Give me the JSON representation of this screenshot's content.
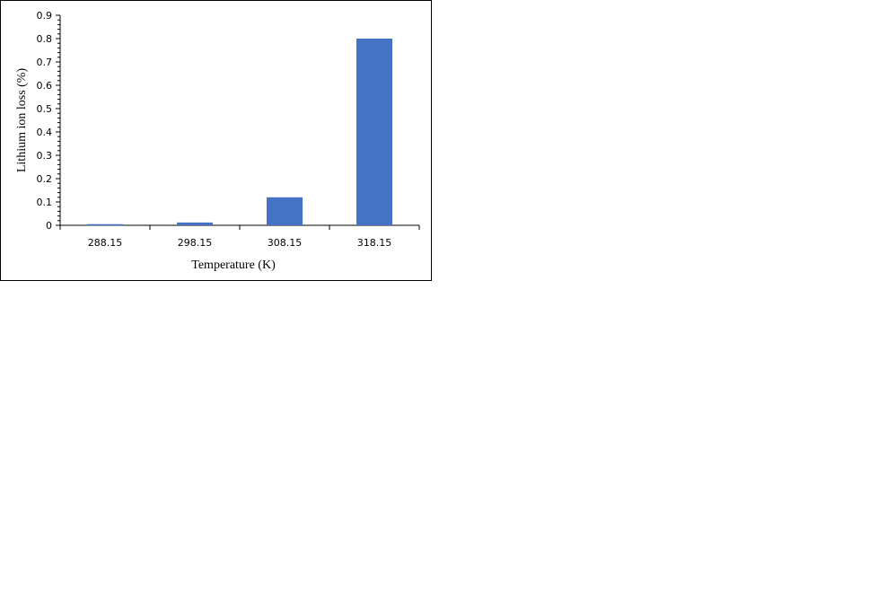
{
  "chart_data": {
    "type": "bar",
    "title": "",
    "xlabel": "Temperature (K)",
    "ylabel": "Lithium ion loss (%)",
    "categories": [
      "288.15",
      "298.15",
      "308.15",
      "318.15"
    ],
    "values": [
      0.005,
      0.012,
      0.12,
      0.8
    ],
    "ylim": [
      0,
      0.9
    ],
    "yticks": [
      "0",
      "0.1",
      "0.2",
      "0.3",
      "0.4",
      "0.5",
      "0.6",
      "0.7",
      "0.8",
      "0.9"
    ],
    "grid": false,
    "legend": "none",
    "bar_color": "#4472C4"
  }
}
